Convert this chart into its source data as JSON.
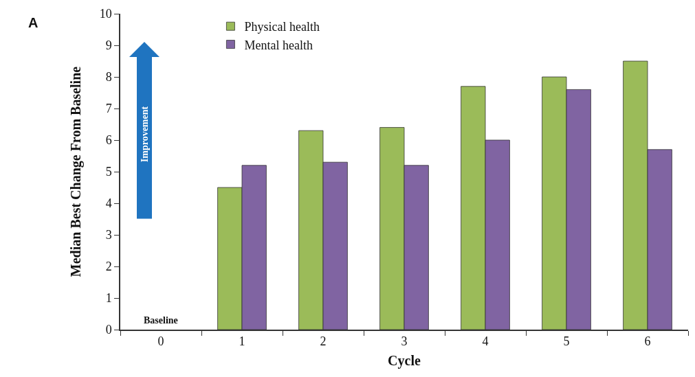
{
  "chart_data": {
    "type": "bar",
    "xlabel": "Cycle",
    "ylabel": "Median Best Change From Baseline",
    "categories": [
      "0",
      "1",
      "2",
      "3",
      "4",
      "5",
      "6"
    ],
    "series": [
      {
        "name": "Physical health",
        "color": "#9bbb59",
        "values": [
          null,
          4.5,
          6.3,
          6.4,
          7.7,
          8.0,
          8.5
        ]
      },
      {
        "name": "Mental health",
        "color": "#8064a2",
        "values": [
          null,
          5.2,
          5.3,
          5.2,
          6.0,
          7.6,
          5.7
        ]
      }
    ],
    "ylim": [
      0,
      10
    ],
    "yticks": [
      0,
      1,
      2,
      3,
      4,
      5,
      6,
      7,
      8,
      9,
      10
    ],
    "grid": false,
    "legend": "top left",
    "annotations": [
      "A",
      "Baseline",
      "Improvement"
    ]
  }
}
